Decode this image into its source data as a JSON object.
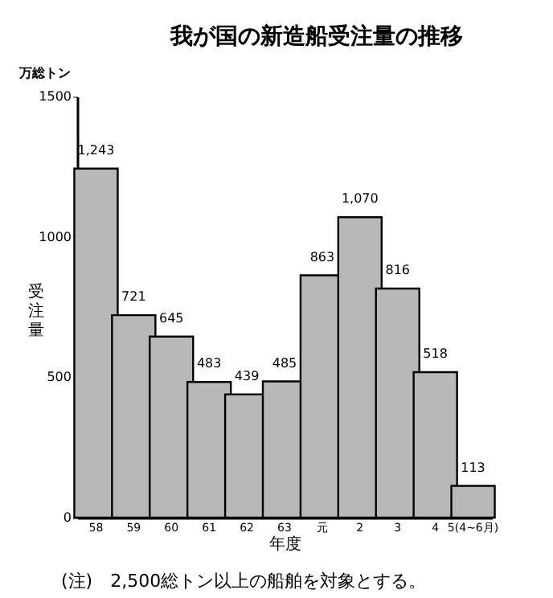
{
  "chart_data": {
    "type": "bar",
    "title": "我が国の新造船受注量の推移",
    "categories": [
      "58",
      "59",
      "60",
      "61",
      "62",
      "63",
      "元",
      "2",
      "3",
      "4",
      "5(4~6月)"
    ],
    "values": [
      1243,
      721,
      645,
      483,
      439,
      485,
      863,
      1070,
      816,
      518,
      113
    ],
    "color": "#b8b8b8",
    "value_labels": [
      "1,243",
      "721",
      "645",
      "483",
      "439",
      "485",
      "863",
      "1,070",
      "816",
      "518",
      "113"
    ],
    "xlabel": "年度",
    "ylabel": "受注量",
    "ylim": [
      0,
      1500
    ],
    "yticks": [
      0,
      500,
      1000,
      1500
    ],
    "grid": false,
    "annotations": [
      "万総トン",
      "(注)　2,500総トン以上の船舶を対象とする。"
    ]
  }
}
